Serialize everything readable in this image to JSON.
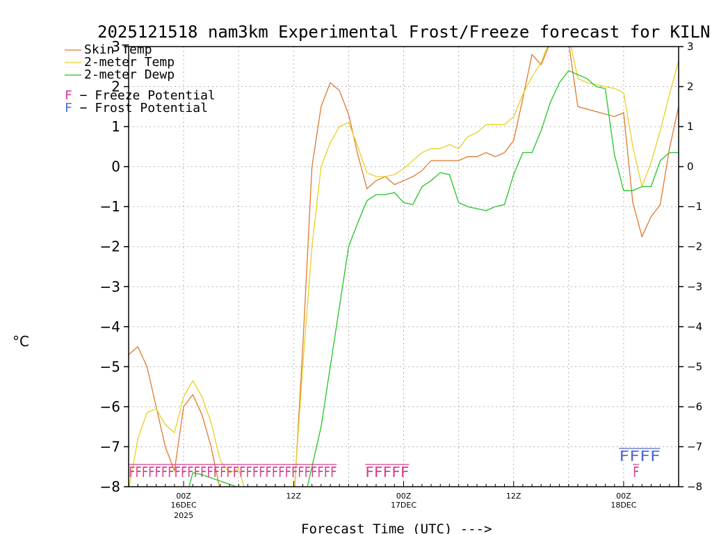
{
  "chart_data": {
    "type": "line",
    "title": "2025121518 nam3km Experimental Frost/Freeze forecast for KILN",
    "ylabel": "°C",
    "xlabel": "Forecast Time (UTC) --->",
    "ylim": [
      -8,
      3
    ],
    "xlim": [
      -5,
      55
    ],
    "yticks": [
      "3",
      "2",
      "1",
      "0",
      "−1",
      "−2",
      "−3",
      "−4",
      "−5",
      "−6",
      "−7",
      "−8"
    ],
    "ytick_values": [
      3,
      2,
      1,
      0,
      -1,
      -2,
      -3,
      -4,
      -5,
      -6,
      -7,
      -8
    ],
    "xticks": [
      {
        "hour": 1,
        "line1": "00Z",
        "line2": "16DEC",
        "line3": "2025"
      },
      {
        "hour": 13,
        "line1": "12Z",
        "line2": "",
        "line3": ""
      },
      {
        "hour": 25,
        "line1": "00Z",
        "line2": "17DEC",
        "line3": ""
      },
      {
        "hour": 37,
        "line1": "12Z",
        "line2": "",
        "line3": ""
      },
      {
        "hour": 49,
        "line1": "00Z",
        "line2": "18DEC",
        "line3": ""
      }
    ],
    "grid_hours": [
      1,
      7,
      13,
      19,
      25,
      31,
      37,
      43,
      49
    ],
    "series": [
      {
        "name": "Skin Temp",
        "color": "#e0782e",
        "x": [
          -5,
          -4,
          -3,
          -2,
          -1,
          0,
          1,
          2,
          3,
          4,
          5,
          6,
          13,
          14,
          15,
          16,
          17,
          18,
          19,
          20,
          21,
          22,
          23,
          24,
          25,
          26,
          27,
          28,
          29,
          30,
          31,
          32,
          33,
          34,
          35,
          36,
          37,
          38,
          39,
          40,
          41,
          42,
          43,
          44,
          48,
          49,
          50,
          51,
          52,
          53,
          54,
          55
        ],
        "y": [
          -4.7,
          -4.5,
          -5.0,
          -6.0,
          -7.0,
          -7.6,
          -6.0,
          -5.7,
          -6.2,
          -7.0,
          -8.1,
          -8.5,
          -8.5,
          -4.5,
          0.0,
          1.5,
          2.1,
          1.9,
          1.3,
          0.3,
          -0.55,
          -0.35,
          -0.25,
          -0.45,
          -0.35,
          -0.25,
          -0.1,
          0.15,
          0.15,
          0.15,
          0.15,
          0.25,
          0.25,
          0.35,
          0.25,
          0.35,
          0.65,
          1.7,
          2.8,
          2.55,
          3.1,
          3.3,
          3.1,
          1.5,
          1.25,
          1.35,
          -0.9,
          -1.75,
          -1.25,
          -0.95,
          0.45,
          1.5
        ]
      },
      {
        "name": "2-meter Temp",
        "color": "#e8d020",
        "x": [
          -5,
          -4,
          -3,
          -2,
          -1,
          0,
          1,
          2,
          3,
          4,
          5,
          6,
          7,
          8,
          13,
          14,
          15,
          16,
          17,
          18,
          19,
          20,
          21,
          22,
          23,
          24,
          25,
          26,
          27,
          28,
          29,
          30,
          31,
          32,
          33,
          34,
          35,
          36,
          37,
          38,
          39,
          40,
          41,
          42,
          43,
          44,
          45,
          46,
          47,
          48,
          49,
          50,
          51,
          52,
          53,
          54,
          55
        ],
        "y": [
          -8.1,
          -6.8,
          -6.15,
          -6.05,
          -6.45,
          -6.65,
          -5.75,
          -5.35,
          -5.75,
          -6.4,
          -7.35,
          -7.65,
          -7.55,
          -8.3,
          -8.3,
          -5.0,
          -2.0,
          0.0,
          0.6,
          1.0,
          1.1,
          0.5,
          -0.15,
          -0.25,
          -0.25,
          -0.2,
          -0.05,
          0.15,
          0.35,
          0.45,
          0.45,
          0.55,
          0.45,
          0.75,
          0.85,
          1.05,
          1.05,
          1.05,
          1.25,
          1.8,
          2.25,
          2.6,
          3.2,
          3.5,
          3.3,
          2.2,
          2.1,
          2.05,
          2.0,
          1.95,
          1.85,
          0.5,
          -0.5,
          0.1,
          0.9,
          1.8,
          2.65
        ]
      },
      {
        "name": "2-meter Dewp",
        "color": "#22c422",
        "x": [
          1,
          2,
          3,
          13,
          14,
          15,
          16,
          17,
          18,
          19,
          20,
          21,
          22,
          23,
          24,
          25,
          26,
          27,
          28,
          29,
          30,
          31,
          32,
          33,
          34,
          35,
          36,
          37,
          38,
          39,
          40,
          41,
          42,
          43,
          44,
          45,
          46,
          47,
          48,
          49,
          50,
          51,
          52,
          53,
          54,
          55
        ],
        "y": [
          -8.5,
          -7.65,
          -7.7,
          -8.5,
          -8.5,
          -7.5,
          -6.5,
          -5.0,
          -3.5,
          -2.0,
          -1.4,
          -0.85,
          -0.7,
          -0.7,
          -0.65,
          -0.9,
          -0.95,
          -0.5,
          -0.35,
          -0.15,
          -0.2,
          -0.9,
          -1.0,
          -1.05,
          -1.1,
          -1.0,
          -0.95,
          -0.2,
          0.35,
          0.35,
          0.9,
          1.6,
          2.1,
          2.4,
          2.3,
          2.2,
          2.0,
          1.95,
          0.3,
          -0.6,
          -0.6,
          -0.5,
          -0.5,
          0.15,
          0.35,
          0.35
        ]
      }
    ],
    "freeze_potential": {
      "label": "F − Freeze Potential",
      "color": "#d83c8c",
      "y_value": -7.6,
      "ranges": [
        {
          "text": "FFFFFFFFFFFFFFFFFFFFFFFFFFFFFFFF",
          "start_hour": -5,
          "end_hour": 17.7
        },
        {
          "text": "FFFFF",
          "start_hour": 20.8,
          "end_hour": 25.6
        },
        {
          "text": "F",
          "start_hour": 50.0,
          "end_hour": 50.7
        }
      ]
    },
    "frost_potential": {
      "label": "F − Frost Potential",
      "color": "#5068d8",
      "y_value": -7.2,
      "ranges": [
        {
          "text": "FFFF",
          "start_hour": 48.5,
          "end_hour": 53.0
        }
      ]
    },
    "legend": [
      "Skin Temp",
      "2-meter Temp",
      "2-meter Dewp"
    ]
  }
}
